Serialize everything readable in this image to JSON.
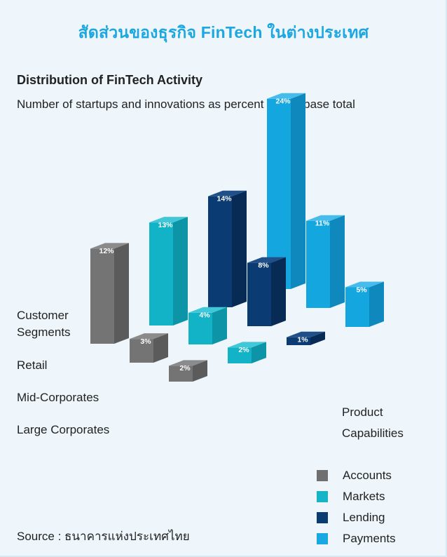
{
  "header": {
    "thai_title": "สัดส่วนของธุรกิจ FinTech ในต่างประเทศ"
  },
  "chart": {
    "title": "Distribution of FinTech Activity",
    "subtitle": "Number of startups and innovations as percent of database total"
  },
  "row_axis": {
    "title_line1": "Customer",
    "title_line2": "Segments",
    "rows": [
      "Retail",
      "Mid-Corporates",
      "Large Corporates"
    ]
  },
  "column_axis": {
    "title_line1": "Product",
    "title_line2": "Capabilities"
  },
  "legend": {
    "items": [
      {
        "label": "Accounts",
        "color": "#6f6f6f"
      },
      {
        "label": "Markets",
        "color": "#17b4c7"
      },
      {
        "label": "Lending",
        "color": "#0b3b73"
      },
      {
        "label": "Payments",
        "color": "#19a9e2"
      }
    ]
  },
  "source": {
    "text": "Source : ธนาคารแห่งประเทศไทย"
  },
  "colors": {
    "title_blue": "#1da7e1",
    "background": "#eef6fb"
  },
  "chart_data": {
    "type": "bar",
    "title": "Distribution of FinTech Activity",
    "subtitle": "Number of startups and innovations as percent of database total",
    "x_axis_title": "Product Capabilities",
    "y_axis_title": "Customer Segments",
    "categories": [
      "Retail",
      "Mid-Corporates",
      "Large Corporates"
    ],
    "series": [
      {
        "name": "Accounts",
        "values": [
          12,
          3,
          2
        ],
        "labels": [
          "12%",
          "3%",
          "2%"
        ]
      },
      {
        "name": "Markets",
        "values": [
          13,
          4,
          2
        ],
        "labels": [
          "13%",
          "4%",
          "2%"
        ]
      },
      {
        "name": "Lending",
        "values": [
          14,
          8,
          1
        ],
        "labels": [
          "14%",
          "8%",
          "1%"
        ]
      },
      {
        "name": "Payments",
        "values": [
          24,
          11,
          5
        ],
        "labels": [
          "24%",
          "11%",
          "5%"
        ]
      }
    ],
    "unit": "%",
    "grid": false,
    "legend_position": "bottom-right"
  }
}
